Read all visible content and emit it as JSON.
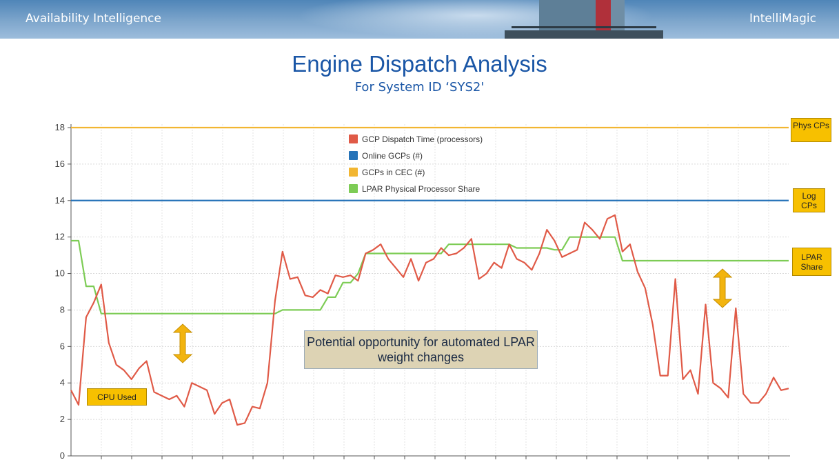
{
  "header": {
    "left_text": "Availability Intelligence",
    "right_text": "IntelliMagic"
  },
  "title": "Engine Dispatch Analysis",
  "subtitle": "For System ID ‘SYS2'",
  "callouts": {
    "phys_cps": "Phys CPs",
    "log_cps": "Log CPs",
    "lpar_share": "LPAR Share",
    "cpu_used": "CPU Used",
    "opportunity": "Potential opportunity for automated LPAR weight changes"
  },
  "colors": {
    "gcp_dispatch": "#e05a47",
    "online_gcps": "#2673b8",
    "gcps_in_cec": "#f2b632",
    "lpar_share": "#7dcc55",
    "callout_fill": "#f7c000",
    "title": "#1a56a6"
  },
  "chart_data": {
    "type": "line",
    "title": "Engine Dispatch Analysis",
    "subtitle": "For System ID ‘SYS2'",
    "ylim": [
      0,
      18
    ],
    "yticks": [
      0,
      2,
      4,
      6,
      8,
      10,
      12,
      14,
      16,
      18
    ],
    "grid": true,
    "legend_position": "top-center",
    "x_count": 96,
    "series": [
      {
        "name": "GCP Dispatch Time (processors)",
        "color": "#e05a47",
        "values": [
          3.6,
          2.8,
          7.6,
          8.4,
          9.4,
          6.2,
          5.0,
          4.7,
          4.2,
          4.8,
          5.2,
          3.5,
          3.3,
          3.1,
          3.3,
          2.7,
          4.0,
          3.8,
          3.6,
          2.3,
          2.9,
          3.1,
          1.7,
          1.8,
          2.7,
          2.6,
          4.0,
          8.5,
          11.2,
          9.7,
          9.8,
          8.8,
          8.7,
          9.1,
          8.9,
          9.9,
          9.8,
          9.9,
          9.6,
          11.1,
          11.3,
          11.6,
          10.8,
          10.3,
          9.8,
          10.8,
          9.6,
          10.6,
          10.8,
          11.4,
          11.0,
          11.1,
          11.4,
          11.9,
          9.7,
          10.0,
          10.6,
          10.3,
          11.6,
          10.8,
          10.6,
          10.2,
          11.1,
          12.4,
          11.8,
          10.9,
          11.1,
          11.3,
          12.8,
          12.4,
          11.9,
          13.0,
          13.2,
          11.2,
          11.6,
          10.1,
          9.2,
          7.2,
          4.4,
          4.4,
          9.7,
          4.2,
          4.7,
          3.4,
          8.3,
          4.0,
          3.7,
          3.2,
          8.1,
          3.4,
          2.9,
          2.9,
          3.4,
          4.3,
          3.6,
          3.7
        ]
      },
      {
        "name": "Online GCPs (#)",
        "color": "#2673b8",
        "values": [
          14
        ]
      },
      {
        "name": "GCPs in CEC (#)",
        "color": "#f2b632",
        "values": [
          18
        ]
      },
      {
        "name": "LPAR Physical Processor Share",
        "color": "#7dcc55",
        "values": [
          11.8,
          11.8,
          9.3,
          9.3,
          7.8,
          7.8,
          7.8,
          7.8,
          7.8,
          7.8,
          7.8,
          7.8,
          7.8,
          7.8,
          7.8,
          7.8,
          7.8,
          7.8,
          7.8,
          7.8,
          7.8,
          7.8,
          7.8,
          7.8,
          7.8,
          7.8,
          7.8,
          7.8,
          8.0,
          8.0,
          8.0,
          8.0,
          8.0,
          8.0,
          8.7,
          8.7,
          9.5,
          9.5,
          10.0,
          11.1,
          11.1,
          11.1,
          11.1,
          11.1,
          11.1,
          11.1,
          11.1,
          11.1,
          11.1,
          11.1,
          11.6,
          11.6,
          11.6,
          11.6,
          11.6,
          11.6,
          11.6,
          11.6,
          11.6,
          11.4,
          11.4,
          11.4,
          11.4,
          11.4,
          11.3,
          11.3,
          12.0,
          12.0,
          12.0,
          12.0,
          12.0,
          12.0,
          12.0,
          10.7,
          10.7,
          10.7,
          10.7,
          10.7,
          10.7,
          10.7,
          10.7,
          10.7,
          10.7,
          10.7,
          10.7,
          10.7,
          10.7,
          10.7,
          10.7,
          10.7,
          10.7,
          10.7,
          10.7,
          10.7,
          10.7,
          10.7
        ]
      }
    ]
  }
}
